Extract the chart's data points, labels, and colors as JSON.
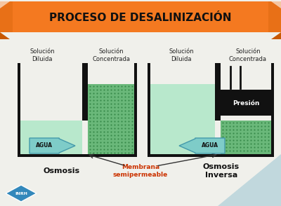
{
  "title": "PROCESO DE DESALINIZACIÓN",
  "bg_color": "#f0f0eb",
  "banner_color": "#F47920",
  "banner_dark": "#c85800",
  "water_light_color": "#b8e8cc",
  "water_dark_color": "#6ab87a",
  "black": "#111111",
  "arrow_fill": "#7eccc8",
  "arrow_edge": "#4499aa",
  "membrana_color": "#cc3300",
  "inrh_color": "#3388bb",
  "osmosis_label": "Osmosis",
  "inversa_label": "Osmosis\nInversa",
  "membrana_label": "Membrana\nsemipermeable",
  "sol_diluida": "Solución\nDiluida",
  "sol_concentrada": "Solución\nConcentrada",
  "figw": 4.0,
  "figh": 2.94,
  "dpi": 100
}
